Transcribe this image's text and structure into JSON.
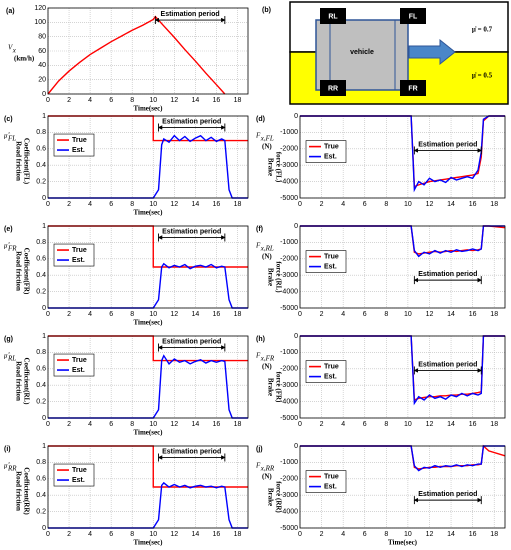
{
  "chart_data": [
    {
      "type": "line",
      "label": "(a)",
      "y_symbol": "V",
      "y_symbol_sub": "x",
      "y_unit": "(km/h)",
      "xlabel": "Time(sec)",
      "x": [
        0,
        1,
        2,
        3,
        4,
        5,
        6,
        7,
        8,
        9,
        10,
        10.2,
        11,
        12,
        13,
        14,
        15,
        16,
        16.8
      ],
      "values": [
        0,
        18,
        32,
        44,
        55,
        64,
        73,
        81,
        89,
        96,
        104,
        108,
        95,
        79,
        62,
        46,
        29,
        13,
        0
      ],
      "color": "#ff0000",
      "xlim": [
        0,
        19
      ],
      "xticks": [
        0,
        2,
        4,
        6,
        8,
        10,
        12,
        14,
        16,
        18
      ],
      "ylim": [
        0,
        120
      ],
      "yticks": [
        0,
        20,
        40,
        60,
        80,
        100,
        120
      ],
      "grid": true,
      "annotation": {
        "text": "Estimation period",
        "start": 10.2,
        "end": 16.8
      }
    },
    {
      "type": "line",
      "label": "(c)",
      "y_symbol": "μ̂",
      "y_symbol_sub": "FL",
      "ylabel": [
        "Road friction",
        "Coefficient(FL)"
      ],
      "xlabel": "Time(sec)",
      "x": [
        0,
        10,
        10,
        10.5,
        10.8,
        11,
        11.5,
        12,
        12.5,
        13,
        13.5,
        14,
        14.5,
        15,
        15.5,
        16,
        16.5,
        16.8,
        17.2,
        17.5,
        19
      ],
      "series": [
        {
          "name": "True",
          "color": "#ff0000",
          "values": [
            1,
            1,
            0.7,
            0.7,
            0.7,
            0.7,
            0.7,
            0.7,
            0.7,
            0.7,
            0.7,
            0.7,
            0.7,
            0.7,
            0.7,
            0.7,
            0.7,
            0.7,
            0.7,
            0.7,
            0.7
          ]
        },
        {
          "name": "Est.",
          "color": "#0000ff",
          "values": [
            0,
            0,
            0,
            0.1,
            0.65,
            0.72,
            0.68,
            0.76,
            0.7,
            0.75,
            0.69,
            0.73,
            0.76,
            0.7,
            0.74,
            0.69,
            0.72,
            0.7,
            0.1,
            0,
            0
          ]
        }
      ],
      "xlim": [
        0,
        19
      ],
      "xticks": [
        0,
        2,
        4,
        6,
        8,
        10,
        12,
        14,
        16,
        18
      ],
      "ylim": [
        0,
        1
      ],
      "yticks": [
        0,
        0.2,
        0.4,
        0.6,
        0.8,
        1
      ],
      "grid": true,
      "legend": "upper left",
      "annotation": {
        "text": "Estimation period",
        "start": 10.5,
        "end": 16.8
      }
    },
    {
      "type": "line",
      "label": "(d)",
      "y_symbol": "F",
      "y_symbol_sub": "x,FL",
      "y_unit": "(N)",
      "ylabel": [
        "Brake",
        "force (FL)"
      ],
      "x": [
        0,
        10.3,
        10.6,
        11,
        11.5,
        12,
        12.5,
        13,
        13.5,
        14,
        14.5,
        15,
        15.5,
        16,
        16.5,
        16.8,
        17,
        17.5,
        19
      ],
      "series": [
        {
          "name": "True",
          "color": "#ff0000",
          "values": [
            0,
            0,
            -4300,
            -4200,
            -4100,
            -4000,
            -3950,
            -3900,
            -3850,
            -3800,
            -3750,
            -3700,
            -3650,
            -3600,
            -3500,
            -2500,
            -300,
            0,
            0
          ]
        },
        {
          "name": "Est.",
          "color": "#0000ff",
          "values": [
            0,
            0,
            -4500,
            -4000,
            -4200,
            -3800,
            -4000,
            -3900,
            -4050,
            -3750,
            -3900,
            -3800,
            -3700,
            -3800,
            -3300,
            -2200,
            -200,
            0,
            0
          ]
        }
      ],
      "xlim": [
        0,
        19
      ],
      "xticks": [
        0,
        2,
        4,
        6,
        8,
        10,
        12,
        14,
        16,
        18
      ],
      "ylim": [
        -5000,
        0
      ],
      "yticks": [
        -5000,
        -4000,
        -3000,
        -2000,
        -1000,
        0
      ],
      "grid": true,
      "legend": "upper left",
      "annotation": {
        "text": "Estimation period",
        "start": 10.6,
        "end": 16.8
      }
    },
    {
      "type": "line",
      "label": "(e)",
      "y_symbol": "μ̂",
      "y_symbol_sub": "FR",
      "ylabel": [
        "Road friction",
        "Coefficient(FR)"
      ],
      "xlabel": "Time(sec)",
      "x": [
        0,
        10,
        10,
        10.5,
        10.8,
        11,
        11.5,
        12,
        12.5,
        13,
        13.5,
        14,
        14.5,
        15,
        15.5,
        16,
        16.5,
        16.8,
        17.2,
        17.5,
        19
      ],
      "series": [
        {
          "name": "True",
          "color": "#ff0000",
          "values": [
            1,
            1,
            0.5,
            0.5,
            0.5,
            0.5,
            0.5,
            0.5,
            0.5,
            0.5,
            0.5,
            0.5,
            0.5,
            0.5,
            0.5,
            0.5,
            0.5,
            0.5,
            0.5,
            0.5,
            0.5
          ]
        },
        {
          "name": "Est.",
          "color": "#0000ff",
          "values": [
            0,
            0,
            0,
            0.1,
            0.5,
            0.54,
            0.49,
            0.52,
            0.5,
            0.53,
            0.48,
            0.51,
            0.52,
            0.5,
            0.53,
            0.49,
            0.51,
            0.5,
            0.1,
            0,
            0
          ]
        }
      ],
      "xlim": [
        0,
        19
      ],
      "xticks": [
        0,
        2,
        4,
        6,
        8,
        10,
        12,
        14,
        16,
        18
      ],
      "ylim": [
        0,
        1
      ],
      "yticks": [
        0,
        0.2,
        0.4,
        0.6,
        0.8,
        1
      ],
      "grid": true,
      "legend": "upper left",
      "annotation": {
        "text": "Estimation period",
        "start": 10.5,
        "end": 16.8
      }
    },
    {
      "type": "line",
      "label": "(f)",
      "y_symbol": "F",
      "y_symbol_sub": "x,RL",
      "y_unit": "(N)",
      "ylabel": [
        "Brake",
        "force (RL)"
      ],
      "x": [
        0,
        10.3,
        10.6,
        11,
        11.5,
        12,
        12.5,
        13,
        13.5,
        14,
        14.5,
        15,
        15.5,
        16,
        16.5,
        16.8,
        17,
        17.5,
        19
      ],
      "series": [
        {
          "name": "True",
          "color": "#ff0000",
          "values": [
            0,
            0,
            -1600,
            -1700,
            -1650,
            -1600,
            -1550,
            -1600,
            -1550,
            -1500,
            -1550,
            -1500,
            -1450,
            -1500,
            -1450,
            -1400,
            0,
            0,
            -100
          ]
        },
        {
          "name": "Est.",
          "color": "#0000ff",
          "values": [
            0,
            0,
            -1500,
            -1850,
            -1600,
            -1700,
            -1500,
            -1650,
            -1500,
            -1600,
            -1450,
            -1550,
            -1500,
            -1400,
            -1500,
            -1400,
            0,
            0,
            0
          ]
        }
      ],
      "xlim": [
        0,
        19
      ],
      "xticks": [
        0,
        2,
        4,
        6,
        8,
        10,
        12,
        14,
        16,
        18
      ],
      "ylim": [
        -5000,
        0
      ],
      "yticks": [
        -5000,
        -4000,
        -3000,
        -2000,
        -1000,
        0
      ],
      "grid": true,
      "legend": "upper left",
      "annotation": {
        "text": "Estimation period",
        "start": 10.6,
        "end": 16.8
      }
    },
    {
      "type": "line",
      "label": "(g)",
      "y_symbol": "μ̂",
      "y_symbol_sub": "RL",
      "ylabel": [
        "Road friction",
        "Coefficient(RL)"
      ],
      "xlabel": "Time(sec)",
      "x": [
        0,
        10,
        10,
        10.5,
        10.8,
        11,
        11.5,
        12,
        12.5,
        13,
        13.5,
        14,
        14.5,
        15,
        15.5,
        16,
        16.5,
        16.8,
        17.2,
        17.5,
        19
      ],
      "series": [
        {
          "name": "True",
          "color": "#ff0000",
          "values": [
            1,
            1,
            0.7,
            0.7,
            0.7,
            0.7,
            0.7,
            0.7,
            0.7,
            0.7,
            0.7,
            0.7,
            0.7,
            0.7,
            0.7,
            0.7,
            0.7,
            0.7,
            0.7,
            0.7,
            0.7
          ]
        },
        {
          "name": "Est.",
          "color": "#0000ff",
          "values": [
            0,
            0,
            0,
            0.1,
            0.7,
            0.76,
            0.66,
            0.72,
            0.68,
            0.7,
            0.66,
            0.69,
            0.71,
            0.67,
            0.7,
            0.68,
            0.7,
            0.69,
            0.1,
            0,
            0
          ]
        }
      ],
      "xlim": [
        0,
        19
      ],
      "xticks": [
        0,
        2,
        4,
        6,
        8,
        10,
        12,
        14,
        16,
        18
      ],
      "ylim": [
        0,
        1
      ],
      "yticks": [
        0,
        0.2,
        0.4,
        0.6,
        0.8,
        1
      ],
      "grid": true,
      "legend": "upper left",
      "annotation": {
        "text": "Estimation period",
        "start": 10.5,
        "end": 16.8
      }
    },
    {
      "type": "line",
      "label": "(h)",
      "y_symbol": "F",
      "y_symbol_sub": "x,FR",
      "y_unit": "(N)",
      "ylabel": [
        "Brake",
        "force (FR)"
      ],
      "x": [
        0,
        10.3,
        10.6,
        11,
        11.5,
        12,
        12.5,
        13,
        13.5,
        14,
        14.5,
        15,
        15.5,
        16,
        16.5,
        16.8,
        17,
        17.5,
        19
      ],
      "series": [
        {
          "name": "True",
          "color": "#ff0000",
          "values": [
            0,
            0,
            -3900,
            -3800,
            -3750,
            -3700,
            -3700,
            -3650,
            -3650,
            -3600,
            -3600,
            -3550,
            -3550,
            -3500,
            -3450,
            -3400,
            0,
            0,
            0
          ]
        },
        {
          "name": "Est.",
          "color": "#0000ff",
          "values": [
            0,
            0,
            -4100,
            -3700,
            -3900,
            -3600,
            -3800,
            -3700,
            -3850,
            -3600,
            -3700,
            -3500,
            -3650,
            -3500,
            -3600,
            -3500,
            0,
            0,
            0
          ]
        }
      ],
      "xlim": [
        0,
        19
      ],
      "xticks": [
        0,
        2,
        4,
        6,
        8,
        10,
        12,
        14,
        16,
        18
      ],
      "ylim": [
        -5000,
        0
      ],
      "yticks": [
        -5000,
        -4000,
        -3000,
        -2000,
        -1000,
        0
      ],
      "grid": true,
      "legend": "upper left",
      "annotation": {
        "text": "Estimation period",
        "start": 10.6,
        "end": 16.8
      }
    },
    {
      "type": "line",
      "label": "(i)",
      "y_symbol": "μ̂",
      "y_symbol_sub": "RR",
      "ylabel": [
        "Road friction",
        "Coefficient(RR)"
      ],
      "xlabel": "Time(sec)",
      "x": [
        0,
        10,
        10,
        10.5,
        10.8,
        11,
        11.5,
        12,
        12.5,
        13,
        13.5,
        14,
        14.5,
        15,
        15.5,
        16,
        16.5,
        16.8,
        17.2,
        17.5,
        19
      ],
      "series": [
        {
          "name": "True",
          "color": "#ff0000",
          "values": [
            1,
            1,
            0.5,
            0.5,
            0.5,
            0.5,
            0.5,
            0.5,
            0.5,
            0.5,
            0.5,
            0.5,
            0.5,
            0.5,
            0.5,
            0.5,
            0.5,
            0.5,
            0.5,
            0.5,
            0.5
          ]
        },
        {
          "name": "Est.",
          "color": "#0000ff",
          "values": [
            0,
            0,
            0,
            0.1,
            0.52,
            0.55,
            0.5,
            0.53,
            0.5,
            0.52,
            0.49,
            0.51,
            0.52,
            0.5,
            0.51,
            0.49,
            0.51,
            0.5,
            0.1,
            0,
            0
          ]
        }
      ],
      "xlim": [
        0,
        19
      ],
      "xticks": [
        0,
        2,
        4,
        6,
        8,
        10,
        12,
        14,
        16,
        18
      ],
      "ylim": [
        0,
        1
      ],
      "yticks": [
        0,
        0.2,
        0.4,
        0.6,
        0.8,
        1
      ],
      "grid": true,
      "legend": "upper left",
      "annotation": {
        "text": "Estimation period",
        "start": 10.5,
        "end": 16.8
      }
    },
    {
      "type": "line",
      "label": "(j)",
      "y_symbol": "F",
      "y_symbol_sub": "x,RR",
      "y_unit": "(N)",
      "ylabel": [
        "Brake",
        "force (RR)"
      ],
      "xlabel": "Time(sec)",
      "x": [
        0,
        10.3,
        10.6,
        11,
        11.5,
        12,
        12.5,
        13,
        13.5,
        14,
        14.5,
        15,
        15.5,
        16,
        16.5,
        16.8,
        17,
        17.5,
        19
      ],
      "series": [
        {
          "name": "True",
          "color": "#ff0000",
          "values": [
            0,
            0,
            -1300,
            -1400,
            -1350,
            -1300,
            -1300,
            -1250,
            -1250,
            -1250,
            -1200,
            -1200,
            -1200,
            -1150,
            -1150,
            -1100,
            0,
            -300,
            -600
          ]
        },
        {
          "name": "Est.",
          "color": "#0000ff",
          "values": [
            0,
            0,
            -1200,
            -1500,
            -1300,
            -1350,
            -1200,
            -1300,
            -1200,
            -1250,
            -1150,
            -1250,
            -1150,
            -1200,
            -1100,
            -1100,
            0,
            0,
            0
          ]
        }
      ],
      "xlim": [
        0,
        19
      ],
      "xticks": [
        0,
        2,
        4,
        6,
        8,
        10,
        12,
        14,
        16,
        18
      ],
      "ylim": [
        -5000,
        0
      ],
      "yticks": [
        -5000,
        -4000,
        -3000,
        -2000,
        -1000,
        0
      ],
      "grid": true,
      "legend": "upper left",
      "annotation": {
        "text": "Estimation period",
        "start": 10.6,
        "end": 16.8
      }
    }
  ],
  "diagram": {
    "label": "(b)",
    "vehicle": "vehicle",
    "wheels": [
      "RL",
      "FL",
      "RR",
      "FR"
    ],
    "zones": [
      "μ̇ = 0.7",
      "μ̇ = 0.5"
    ]
  }
}
